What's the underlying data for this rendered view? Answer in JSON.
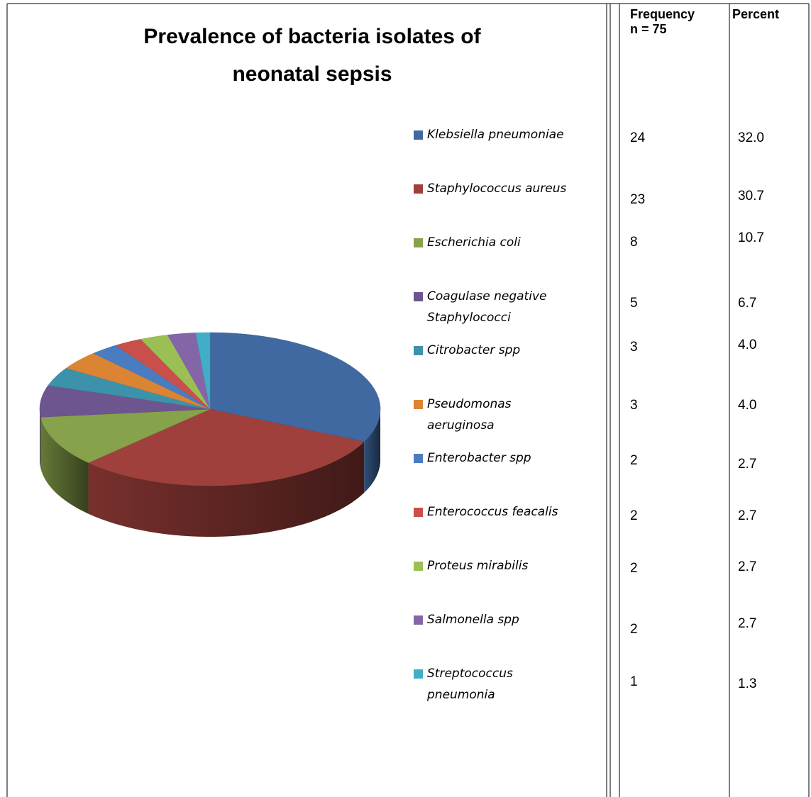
{
  "chart_data": {
    "type": "pie",
    "title": [
      "Prevalence of bacteria isolates of",
      "neonatal sepsis"
    ],
    "categories": [
      "Klebsiella pneumoniae",
      "Staphylococcus aureus",
      "Escherichia coli",
      "Coagulase negative Staphylococci",
      "Citrobacter spp",
      "Pseudomonas aeruginosa",
      "Enterobacter spp",
      "Enterococcus feacalis",
      "Proteus mirabilis",
      "Salmonella spp",
      "Streptococcus pneumonia"
    ],
    "values": [
      24,
      23,
      8,
      5,
      3,
      3,
      2,
      2,
      2,
      2,
      1
    ],
    "colors": [
      "#3f69a0",
      "#a0403c",
      "#86a24a",
      "#6d5590",
      "#3d92ab",
      "#db8433",
      "#4a7cc2",
      "#c94f4b",
      "#9cbf55",
      "#8466a8",
      "#40aec6"
    ],
    "legend": "right"
  },
  "table": {
    "frequency_header": [
      "Frequency",
      "n = 75"
    ],
    "percent_header": "Percent",
    "percent": [
      "32.0",
      "30.7",
      "10.7",
      "6.7",
      "4.0",
      "4.0",
      "2.7",
      "2.7",
      "2.7",
      "2.7",
      "1.3"
    ]
  }
}
